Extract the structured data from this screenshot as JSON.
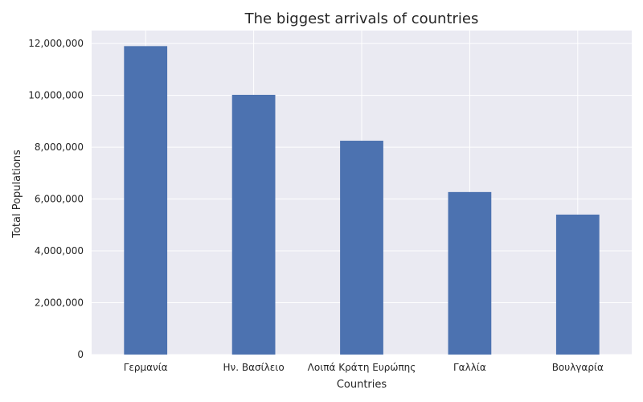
{
  "chart_data": {
    "type": "bar",
    "title": "The biggest arrivals of countries",
    "xlabel": "Countries",
    "ylabel": "Total Populations",
    "categories": [
      "Γερμανία",
      "Ην. Βασίλειο",
      "Λοιπά Κράτη Ευρώπης",
      "Γαλλία",
      "Βουλγαρία"
    ],
    "values": [
      11900000,
      10020000,
      8250000,
      6270000,
      5400000
    ],
    "ylim": [
      0,
      12500000
    ],
    "yticks": [
      0,
      2000000,
      4000000,
      6000000,
      8000000,
      10000000,
      12000000
    ],
    "ytick_labels": [
      "0",
      "2,000,000",
      "4,000,000",
      "6,000,000",
      "8,000,000",
      "10,000,000",
      "12,000,000"
    ],
    "grid": true,
    "bar_color": "#4c72b0",
    "background_color": "#eaeaf2",
    "grid_color": "#ffffff"
  }
}
